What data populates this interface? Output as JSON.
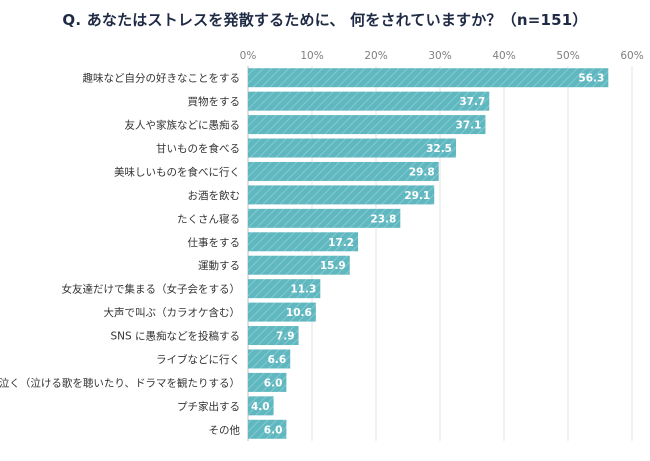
{
  "title": "Q. あなたはストレスを発散するために、 何をされていますか？（n=151）",
  "colors": {
    "bar": "#5fb7c0",
    "bar_stripe": "#8fcfd6",
    "grid": "#e3e3e3",
    "axis_text": "#7f7f7f"
  },
  "chart_data": {
    "type": "bar",
    "orientation": "horizontal",
    "title": "Q. あなたはストレスを発散するために、 何をされていますか？（n=151）",
    "xlabel": "",
    "ylabel": "",
    "xlim": [
      0,
      60
    ],
    "ticks": [
      "0%",
      "10%",
      "20%",
      "30%",
      "40%",
      "50%",
      "60%"
    ],
    "tick_values": [
      0,
      10,
      20,
      30,
      40,
      50,
      60
    ],
    "axis_position": "top",
    "grid": true,
    "categories": [
      "趣味など自分の好きなことをする",
      "買物をする",
      "友人や家族などに愚痴る",
      "甘いものを食べる",
      "美味しいものを食べに行く",
      "お酒を飲む",
      "たくさん寝る",
      "仕事をする",
      "運動する",
      "女友達だけで集まる（女子会をする）",
      "大声で叫ぶ（カラオケ含む）",
      "SNS に愚痴などを投稿する",
      "ライブなどに行く",
      "泣く（泣ける歌を聴いたり、ドラマを観たりする）",
      "プチ家出する",
      "その他"
    ],
    "values": [
      56.3,
      37.7,
      37.1,
      32.5,
      29.8,
      29.1,
      23.8,
      17.2,
      15.9,
      11.3,
      10.6,
      7.9,
      6.6,
      6.0,
      4.0,
      6.0
    ],
    "value_labels": [
      "56.3",
      "37.7",
      "37.1",
      "32.5",
      "29.8",
      "29.1",
      "23.8",
      "17.2",
      "15.9",
      "11.3",
      "10.6",
      "7.9",
      "6.6",
      "6.0",
      "4.0",
      "6.0"
    ]
  }
}
